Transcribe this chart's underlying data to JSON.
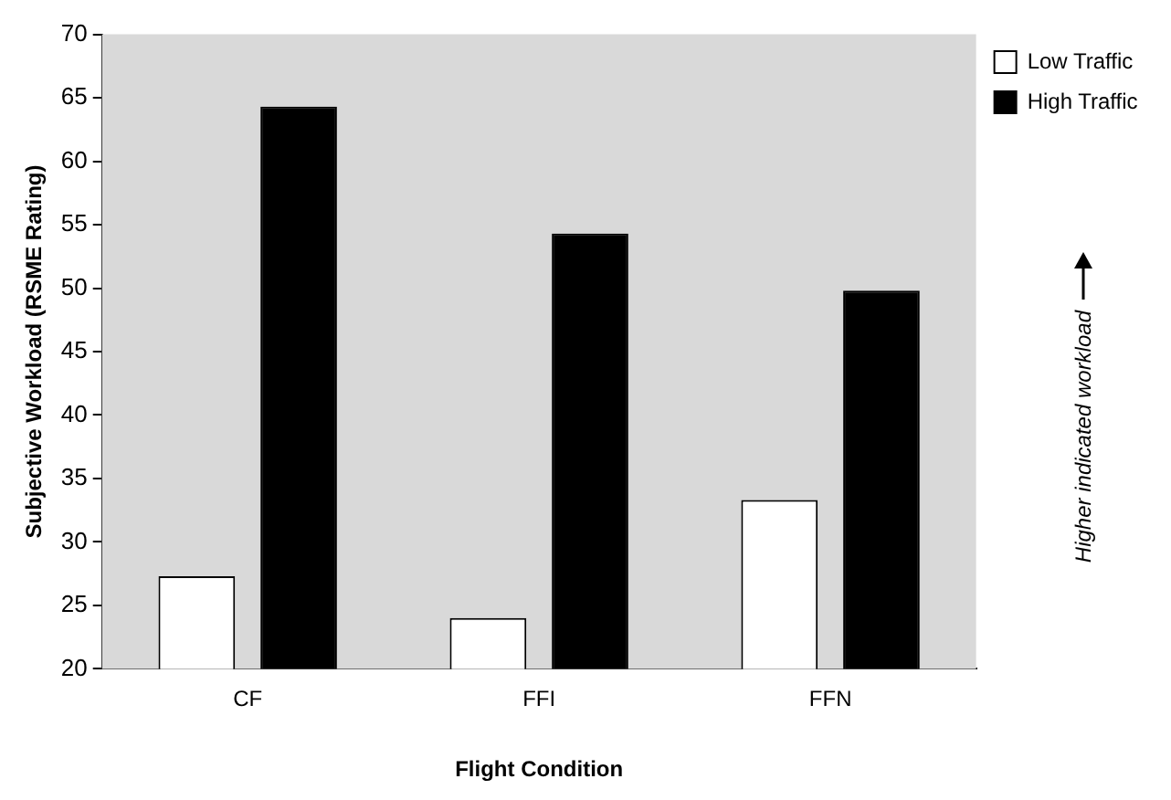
{
  "chart_data": {
    "type": "bar",
    "categories": [
      "CF",
      "FFI",
      "FFN"
    ],
    "series": [
      {
        "name": "Low Traffic",
        "color": "#ffffff",
        "values": [
          27.3,
          24.0,
          33.3
        ]
      },
      {
        "name": "High Traffic",
        "color": "#000000",
        "values": [
          64.3,
          54.3,
          49.8
        ]
      }
    ],
    "xlabel": "Flight Condition",
    "ylabel": "Subjective Workload (RSME Rating)",
    "ylim": [
      20,
      70
    ],
    "yticks": [
      20,
      25,
      30,
      35,
      40,
      45,
      50,
      55,
      60,
      65,
      70
    ],
    "annotations": [
      "Higher indicated workload"
    ],
    "grid": false,
    "legend": "top right"
  }
}
